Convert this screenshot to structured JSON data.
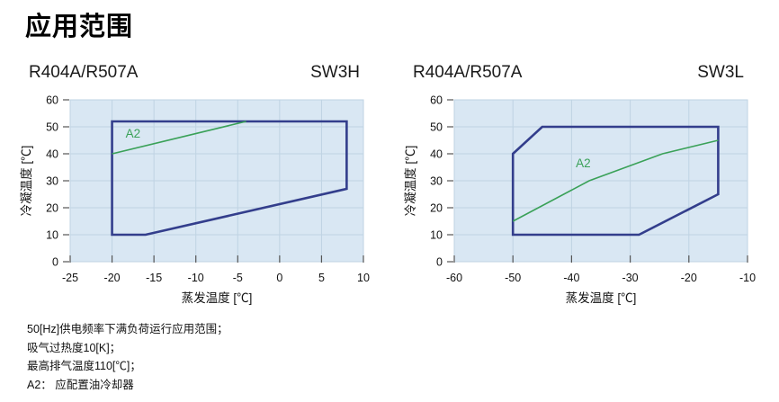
{
  "page": {
    "title": "应用范围"
  },
  "colors": {
    "envelope": "#333e8c",
    "a2_line": "#3aa158",
    "plot_bg": "#d9e7f3",
    "grid": "#bfd3e3",
    "tick": "#555555",
    "text": "#111111"
  },
  "chart_data": [
    {
      "type": "area",
      "refrigerant": "R404A/R507A",
      "model": "SW3H",
      "xlabel": "蒸发温度 [℃]",
      "ylabel": "冷凝温度 [℃]",
      "xlim": [
        -25,
        10
      ],
      "ylim": [
        0,
        60
      ],
      "x_ticks": [
        -25,
        -20,
        -15,
        -10,
        -5,
        0,
        5,
        10
      ],
      "y_ticks": [
        0,
        10,
        20,
        30,
        40,
        50,
        60
      ],
      "grid": true,
      "legend_position": "none",
      "envelope_polygon": [
        [
          -20,
          10
        ],
        [
          -20,
          52
        ],
        [
          8,
          52
        ],
        [
          8,
          27
        ],
        [
          -16,
          10
        ]
      ],
      "a2_line": [
        [
          -20,
          40
        ],
        [
          -4,
          52
        ]
      ],
      "a2_label": "A2",
      "a2_label_pos": [
        -17.5,
        47.5
      ]
    },
    {
      "type": "area",
      "refrigerant": "R404A/R507A",
      "model": "SW3L",
      "xlabel": "蒸发温度 [℃]",
      "ylabel": "冷凝温度 [℃]",
      "xlim": [
        -60,
        -10
      ],
      "ylim": [
        0,
        60
      ],
      "x_ticks": [
        -60,
        -50,
        -40,
        -30,
        -20,
        -10
      ],
      "y_ticks": [
        0,
        10,
        20,
        30,
        40,
        50,
        60
      ],
      "grid": true,
      "legend_position": "none",
      "envelope_polygon": [
        [
          -50,
          10
        ],
        [
          -50,
          40
        ],
        [
          -45,
          50
        ],
        [
          -15,
          50
        ],
        [
          -15,
          25
        ],
        [
          -28.5,
          10
        ]
      ],
      "a2_line": [
        [
          -50,
          15
        ],
        [
          -37,
          30
        ],
        [
          -24.5,
          40
        ],
        [
          -15,
          45
        ]
      ],
      "a2_label": "A2",
      "a2_label_pos": [
        -38,
        36.5
      ]
    }
  ],
  "notes": [
    "50[Hz]供电频率下满负荷运行应用范围；",
    "吸气过热度10[K]；",
    "最高排气温度110[℃]；",
    "A2： 应配置油冷却器"
  ]
}
